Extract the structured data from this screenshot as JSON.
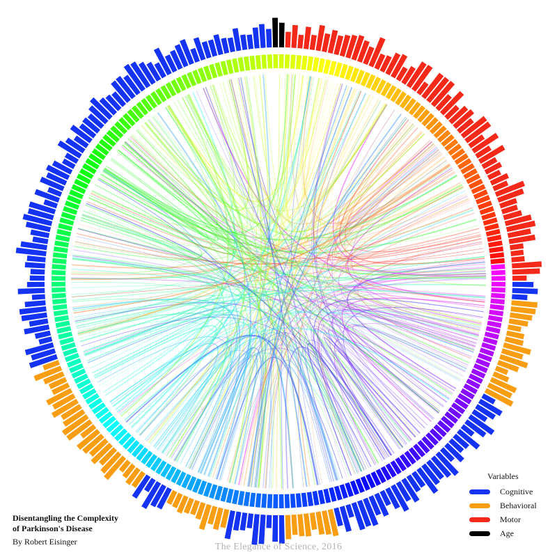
{
  "title_lines": [
    "Disentangling the Complexity",
    "of Parkinson's Disease"
  ],
  "byline": "By Robert Eisinger",
  "footer": "The Elegance of Science, 2016",
  "legend": {
    "title": "Variables",
    "items": [
      {
        "label": "Cognitive",
        "color": "#1433f2"
      },
      {
        "label": "Behavioral",
        "color": "#f99d12"
      },
      {
        "label": "Motor",
        "color": "#f4291a"
      },
      {
        "label": "Age",
        "color": "#000000"
      }
    ]
  },
  "chart_data": {
    "type": "chord",
    "hue_ring": "rainbow (red → orange → yellow → green → cyan → blue → violet → magenta)",
    "category_arcs": [
      {
        "category": "Age",
        "color": "#000000",
        "start_deg": 88,
        "end_deg": 92
      },
      {
        "category": "Cognitive",
        "color": "#1433f2",
        "start_deg": 92,
        "end_deg": 200
      },
      {
        "category": "Behavioral",
        "color": "#f99d12",
        "start_deg": 200,
        "end_deg": 236
      },
      {
        "category": "Cognitive",
        "color": "#1433f2",
        "start_deg": 236,
        "end_deg": 243
      },
      {
        "category": "Behavioral",
        "color": "#f99d12",
        "start_deg": 243,
        "end_deg": 258
      },
      {
        "category": "Cognitive",
        "color": "#1433f2",
        "start_deg": 258,
        "end_deg": 271
      },
      {
        "category": "Behavioral",
        "color": "#f99d12",
        "start_deg": 271,
        "end_deg": 284
      },
      {
        "category": "Cognitive",
        "color": "#1433f2",
        "start_deg": 284,
        "end_deg": 331
      },
      {
        "category": "Behavioral",
        "color": "#f99d12",
        "start_deg": 331,
        "end_deg": 355
      },
      {
        "category": "Cognitive",
        "color": "#1433f2",
        "start_deg": 355,
        "end_deg": 360
      },
      {
        "category": "Motor",
        "color": "#f4291a",
        "start_deg": 0,
        "end_deg": 88
      }
    ]
  }
}
